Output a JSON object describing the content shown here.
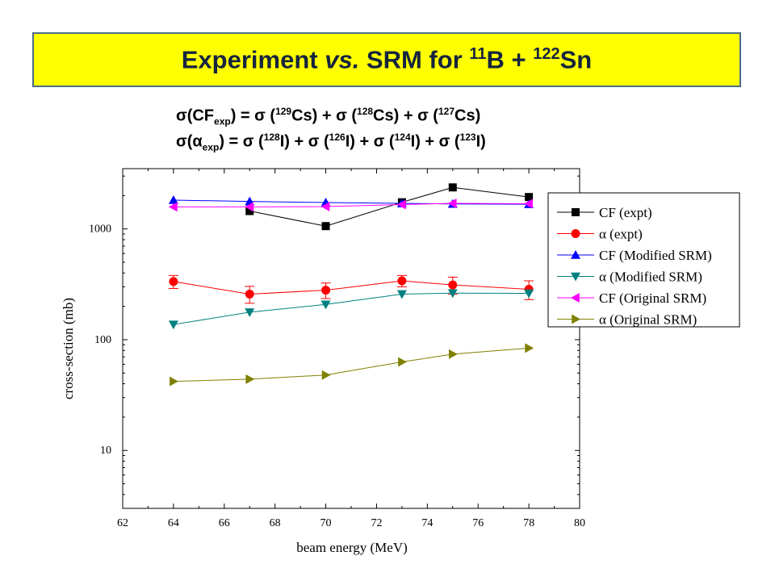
{
  "title": {
    "part1": "Experiment ",
    "part2": "vs.",
    "part3": " SRM for ",
    "b_mass": "11",
    "b_sym": "B + ",
    "sn_mass": "122",
    "sn_sym": "Sn"
  },
  "formula1": {
    "sigma": "σ",
    "open": "(CF",
    "sub": "exp",
    "mid": ") = σ (",
    "m1": "129",
    "s1": "Cs) + σ (",
    "m2": "128",
    "s2": "Cs) + σ (",
    "m3": "127",
    "s3": "Cs)"
  },
  "formula2": {
    "sigma": "σ",
    "open": "(",
    "alpha": "α",
    "sub": "exp",
    "mid": ") = σ (",
    "m1": "128",
    "s1": "I) + σ (",
    "m2": "126",
    "s2": "I) + σ (",
    "m3": "124",
    "s3": "I) + σ (",
    "m4": "123",
    "s4": "I)"
  },
  "chart_data": {
    "type": "scatter",
    "xlabel": "beam energy (MeV)",
    "ylabel": "cross-section (mb)",
    "xlim": [
      62,
      80
    ],
    "ylim": [
      3,
      3500
    ],
    "y_scale": "log",
    "xticks": [
      62,
      64,
      66,
      68,
      70,
      72,
      74,
      76,
      78,
      80
    ],
    "yticks": [
      10,
      100,
      1000
    ],
    "ytick_labels": [
      "10",
      "100",
      "1000"
    ],
    "legend_position": "top-right",
    "grid": false,
    "series": [
      {
        "name": "CF (expt)",
        "marker": "square",
        "color": "#000000",
        "x": [
          67,
          70,
          73,
          75,
          78
        ],
        "y": [
          1450,
          1060,
          1740,
          2370,
          1940
        ],
        "err": [
          0,
          0,
          0,
          0,
          0
        ]
      },
      {
        "name": "α (expt)",
        "marker": "circle",
        "color": "#ff0000",
        "x": [
          64,
          67,
          70,
          73,
          75,
          78
        ],
        "y": [
          335,
          258,
          280,
          340,
          312,
          285
        ],
        "err": [
          45,
          45,
          45,
          40,
          55,
          55
        ]
      },
      {
        "name": "CF (Modified SRM)",
        "marker": "triangle-up",
        "color": "#0000ff",
        "x": [
          64,
          67,
          70,
          73,
          75,
          78
        ],
        "y": [
          1820,
          1770,
          1730,
          1700,
          1680,
          1670
        ],
        "err": [
          0,
          0,
          0,
          0,
          0,
          0
        ]
      },
      {
        "name": "α (Modified SRM)",
        "marker": "triangle-down",
        "color": "#008080",
        "x": [
          64,
          67,
          70,
          73,
          75,
          78
        ],
        "y": [
          137,
          177,
          208,
          258,
          263,
          262
        ],
        "err": [
          0,
          0,
          0,
          0,
          0,
          0
        ]
      },
      {
        "name": "CF (Original SRM)",
        "marker": "triangle-left",
        "color": "#ff00ff",
        "x": [
          64,
          67,
          70,
          73,
          75,
          78
        ],
        "y": [
          1580,
          1580,
          1590,
          1660,
          1700,
          1690
        ],
        "err": [
          0,
          0,
          0,
          0,
          0,
          0
        ]
      },
      {
        "name": "α (Original SRM)",
        "marker": "triangle-right",
        "color": "#808000",
        "x": [
          64,
          67,
          70,
          73,
          75,
          78
        ],
        "y": [
          42,
          44,
          48,
          63,
          74,
          84
        ],
        "err": [
          0,
          0,
          0,
          0,
          0,
          0
        ]
      }
    ]
  }
}
